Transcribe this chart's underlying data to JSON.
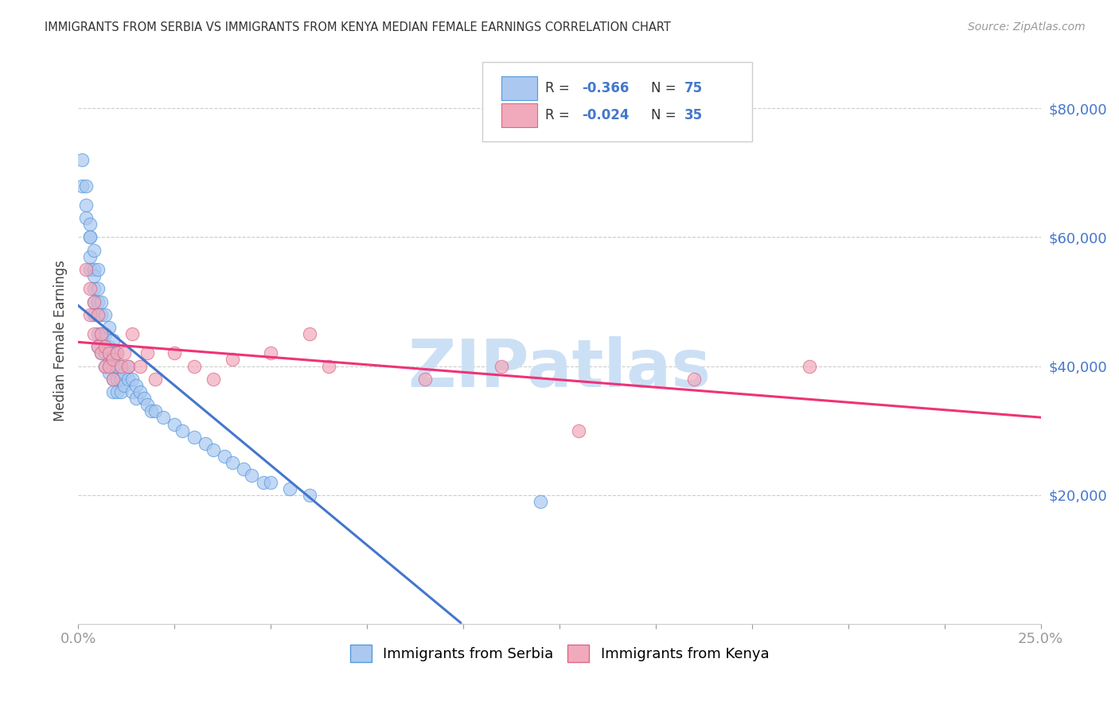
{
  "title": "IMMIGRANTS FROM SERBIA VS IMMIGRANTS FROM KENYA MEDIAN FEMALE EARNINGS CORRELATION CHART",
  "source": "Source: ZipAtlas.com",
  "ylabel": "Median Female Earnings",
  "xlim": [
    0.0,
    0.25
  ],
  "ylim": [
    0,
    88000
  ],
  "xtick_positions": [
    0.0,
    0.025,
    0.05,
    0.075,
    0.1,
    0.125,
    0.15,
    0.175,
    0.2,
    0.225,
    0.25
  ],
  "xtick_labels_show": {
    "0.0": "0.0%",
    "0.25": "25.0%"
  },
  "ytick_values": [
    20000,
    40000,
    60000,
    80000
  ],
  "ytick_labels": [
    "$20,000",
    "$40,000",
    "$60,000",
    "$80,000"
  ],
  "legend_label1": "Immigrants from Serbia",
  "legend_label2": "Immigrants from Kenya",
  "legend_R1": "-0.366",
  "legend_N1": "75",
  "legend_R2": "-0.024",
  "legend_N2": "35",
  "color_serbia_fill": "#aac8f0",
  "color_serbia_edge": "#5599dd",
  "color_kenya_fill": "#f0aabb",
  "color_kenya_edge": "#dd6688",
  "color_serbia_line": "#4477cc",
  "color_kenya_line": "#ee3377",
  "color_grid": "#cccccc",
  "color_ytick": "#4477cc",
  "watermark_text": "ZIPatlas",
  "watermark_color": "#cce0f5",
  "serbia_x": [
    0.001,
    0.001,
    0.002,
    0.002,
    0.002,
    0.003,
    0.003,
    0.003,
    0.003,
    0.003,
    0.004,
    0.004,
    0.004,
    0.004,
    0.004,
    0.004,
    0.005,
    0.005,
    0.005,
    0.005,
    0.005,
    0.005,
    0.006,
    0.006,
    0.006,
    0.006,
    0.007,
    0.007,
    0.007,
    0.007,
    0.008,
    0.008,
    0.008,
    0.008,
    0.008,
    0.009,
    0.009,
    0.009,
    0.009,
    0.009,
    0.01,
    0.01,
    0.01,
    0.01,
    0.011,
    0.011,
    0.011,
    0.012,
    0.012,
    0.013,
    0.013,
    0.014,
    0.014,
    0.015,
    0.015,
    0.016,
    0.017,
    0.018,
    0.019,
    0.02,
    0.022,
    0.025,
    0.027,
    0.03,
    0.033,
    0.035,
    0.038,
    0.04,
    0.043,
    0.045,
    0.048,
    0.05,
    0.055,
    0.06,
    0.12
  ],
  "serbia_y": [
    72000,
    68000,
    68000,
    65000,
    63000,
    62000,
    60000,
    57000,
    55000,
    60000,
    58000,
    55000,
    52000,
    50000,
    48000,
    54000,
    55000,
    52000,
    48000,
    50000,
    45000,
    43000,
    50000,
    48000,
    45000,
    42000,
    48000,
    45000,
    42000,
    40000,
    46000,
    43000,
    41000,
    39000,
    42000,
    44000,
    42000,
    40000,
    38000,
    36000,
    42000,
    40000,
    38000,
    36000,
    40000,
    38000,
    36000,
    39000,
    37000,
    40000,
    38000,
    38000,
    36000,
    37000,
    35000,
    36000,
    35000,
    34000,
    33000,
    33000,
    32000,
    31000,
    30000,
    29000,
    28000,
    27000,
    26000,
    25000,
    24000,
    23000,
    22000,
    22000,
    21000,
    20000,
    19000
  ],
  "kenya_x": [
    0.002,
    0.003,
    0.003,
    0.004,
    0.004,
    0.005,
    0.005,
    0.006,
    0.006,
    0.007,
    0.007,
    0.008,
    0.008,
    0.009,
    0.009,
    0.01,
    0.011,
    0.012,
    0.013,
    0.014,
    0.016,
    0.018,
    0.02,
    0.025,
    0.03,
    0.035,
    0.04,
    0.05,
    0.06,
    0.065,
    0.09,
    0.11,
    0.13,
    0.16,
    0.19
  ],
  "kenya_y": [
    55000,
    52000,
    48000,
    50000,
    45000,
    48000,
    43000,
    45000,
    42000,
    43000,
    40000,
    42000,
    40000,
    41000,
    38000,
    42000,
    40000,
    42000,
    40000,
    45000,
    40000,
    42000,
    38000,
    42000,
    40000,
    38000,
    41000,
    42000,
    45000,
    40000,
    38000,
    40000,
    30000,
    38000,
    40000
  ]
}
